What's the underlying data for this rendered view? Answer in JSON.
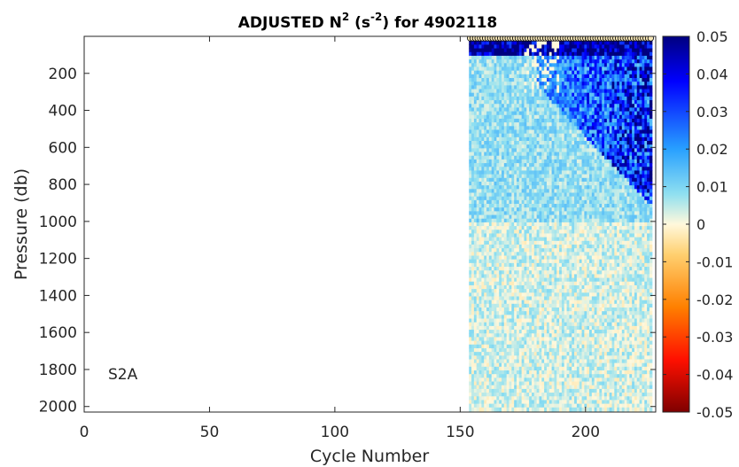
{
  "chart_data": {
    "type": "heatmap",
    "title_main": "ADJUSTED N",
    "title_sup1": "2",
    "title_unit_open": "(s",
    "title_sup2": "-2",
    "title_unit_close": ")",
    "title_tail": "for 4902118",
    "xlabel": "Cycle Number",
    "ylabel": "Pressure (db)",
    "annotation": "S2A",
    "x_range": [
      0,
      228
    ],
    "y_range": [
      0,
      2030
    ],
    "y_reversed": true,
    "x_ticks": [
      "0",
      "50",
      "100",
      "150",
      "200"
    ],
    "x_tick_values": [
      0,
      50,
      100,
      150,
      200
    ],
    "y_ticks": [
      "200",
      "400",
      "600",
      "800",
      "1000",
      "1200",
      "1400",
      "1600",
      "1800",
      "2000"
    ],
    "y_tick_values": [
      200,
      400,
      600,
      800,
      1000,
      1200,
      1400,
      1600,
      1800,
      2000
    ],
    "data_cycle_range": [
      154,
      226
    ],
    "data_pressure_range": [
      5,
      2010
    ],
    "surface_marker_pressure": 10,
    "colorbar": {
      "range": [
        -0.05,
        0.05
      ],
      "colormap": "jet-like diverging",
      "tick_labels": [
        "0.05",
        "0.04",
        "0.03",
        "0.02",
        "0.01",
        "0",
        "-0.01",
        "-0.02",
        "-0.03",
        "-0.04",
        "-0.05"
      ],
      "tick_values": [
        0.05,
        0.04,
        0.03,
        0.02,
        0.01,
        0,
        -0.01,
        -0.02,
        -0.03,
        -0.04,
        -0.05
      ]
    },
    "grid": false
  }
}
